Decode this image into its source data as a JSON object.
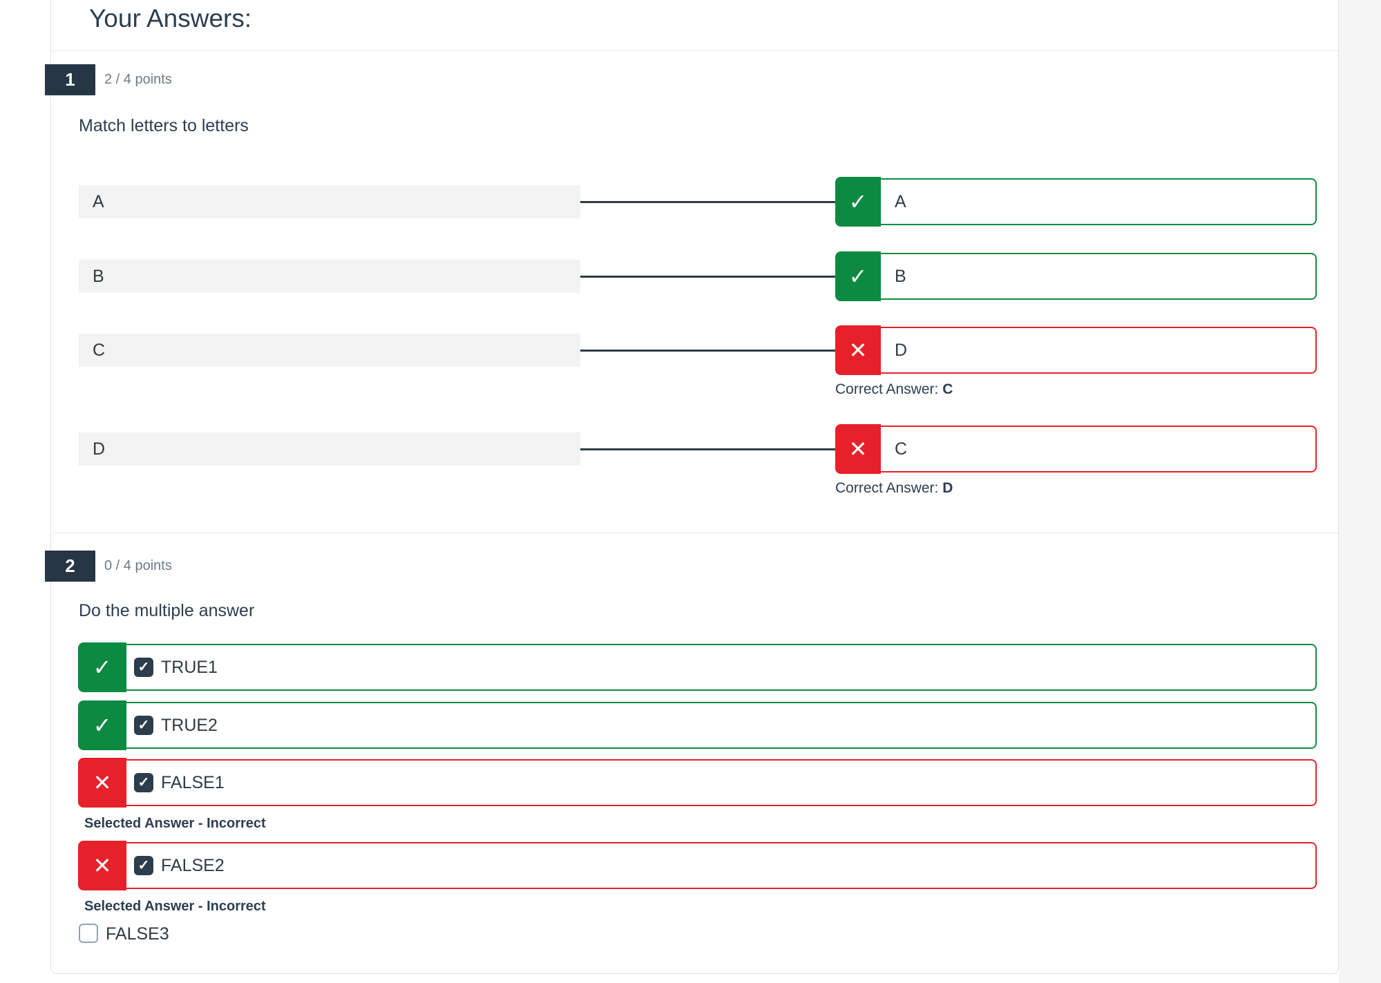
{
  "page": {
    "title": "Your Answers:"
  },
  "colors": {
    "correct_green": "#0d8a42",
    "incorrect_red": "#e62129",
    "dark_navy": "#2d3b45",
    "badge_bg": "#263645",
    "points_gray": "#6c7a86"
  },
  "questions": [
    {
      "number": "1",
      "points": "2 / 4 points",
      "prompt": "Match letters to letters",
      "type": "matching",
      "pairs": [
        {
          "left": "A",
          "answer": "A",
          "correct": true
        },
        {
          "left": "B",
          "answer": "B",
          "correct": true
        },
        {
          "left": "C",
          "answer": "D",
          "correct": false,
          "correct_label": "Correct Answer:",
          "correct_value": "C"
        },
        {
          "left": "D",
          "answer": "C",
          "correct": false,
          "correct_label": "Correct Answer:",
          "correct_value": "D"
        }
      ]
    },
    {
      "number": "2",
      "points": "0 / 4 points",
      "prompt": "Do the multiple answer",
      "type": "multiple_answer",
      "options": [
        {
          "label": "TRUE1",
          "checked": true,
          "state": "correct"
        },
        {
          "label": "TRUE2",
          "checked": true,
          "state": "correct"
        },
        {
          "label": "FALSE1",
          "checked": true,
          "state": "incorrect",
          "note": "Selected Answer - Incorrect"
        },
        {
          "label": "FALSE2",
          "checked": true,
          "state": "incorrect",
          "note": "Selected Answer - Incorrect"
        },
        {
          "label": "FALSE3",
          "checked": false,
          "state": "none"
        }
      ]
    }
  ],
  "icons": {
    "check": "✓",
    "cross": "✕"
  }
}
